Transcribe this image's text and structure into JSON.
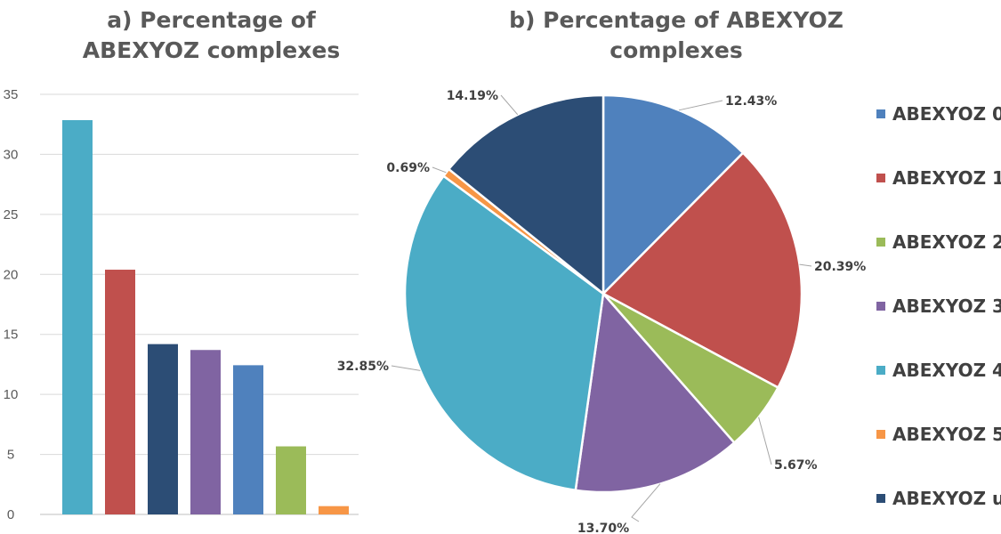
{
  "colors": {
    "ABEXYOZ 0": "#4F81BD",
    "ABEXYOZ 1": "#C0504D",
    "ABEXYOZ 2": "#9BBB59",
    "ABEXYOZ 3": "#8064A2",
    "ABEXYOZ 4": "#4BACC6",
    "ABEXYOZ 5": "#F79646",
    "ABEXYOZ u": "#2C4D75"
  },
  "chart_data": [
    {
      "type": "bar",
      "title": "a) Percentage of ABEXYOZ complexes",
      "categories": [
        "ABEXYOZ 4",
        "ABEXYOZ 1",
        "ABEXYOZ u",
        "ABEXYOZ 3",
        "ABEXYOZ 0",
        "ABEXYOZ 2",
        "ABEXYOZ 5"
      ],
      "values": [
        32.85,
        20.39,
        14.19,
        13.7,
        12.43,
        5.67,
        0.69
      ],
      "ylim": [
        0,
        35
      ],
      "yticks": [
        "0",
        "5",
        "10",
        "15",
        "20",
        "25",
        "30",
        "35"
      ],
      "grid": true
    },
    {
      "type": "pie",
      "title": "b) Percentage of ABEXYOZ complexes",
      "categories": [
        "ABEXYOZ 0",
        "ABEXYOZ 1",
        "ABEXYOZ 2",
        "ABEXYOZ 3",
        "ABEXYOZ 4",
        "ABEXYOZ 5",
        "ABEXYOZ u"
      ],
      "values": [
        12.43,
        20.39,
        5.67,
        13.7,
        32.85,
        0.69,
        14.19
      ],
      "labels": [
        "12.43%",
        "20.39%",
        "5.67%",
        "13.70%",
        "32.85%",
        "0.69%",
        "14.19%"
      ],
      "legend": "right"
    }
  ]
}
